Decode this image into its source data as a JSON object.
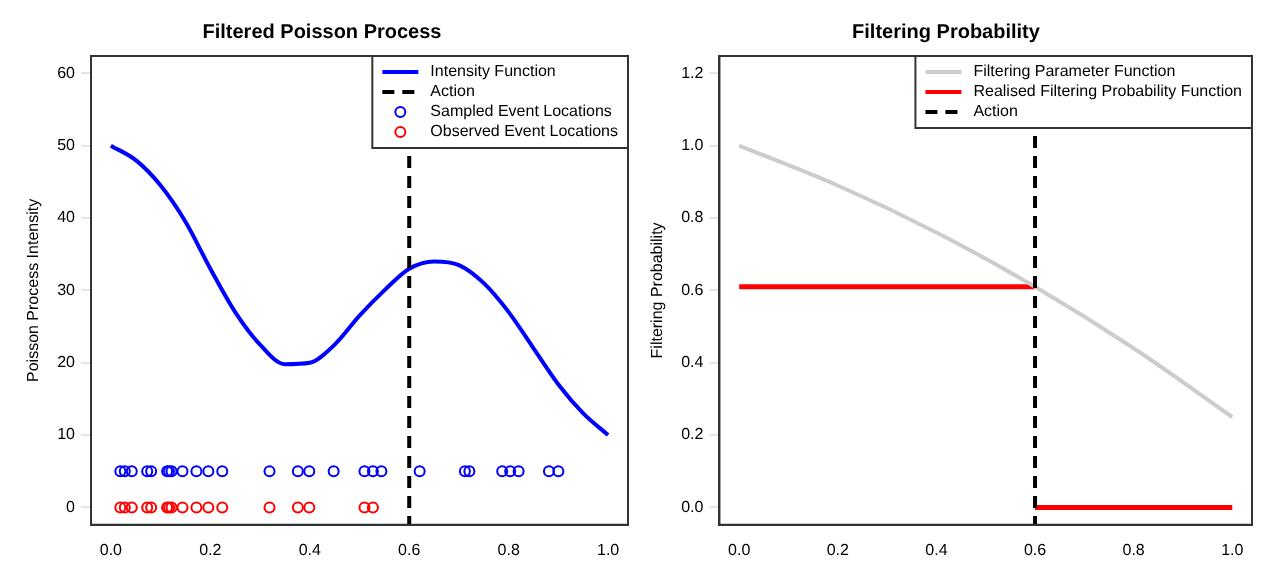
{
  "chart_data": [
    {
      "type": "line",
      "title": "Filtered Poisson Process",
      "ylabel": "Poisson Process Intensity",
      "xlim": [
        -0.04,
        1.04
      ],
      "xticks": [
        {
          "value": 0,
          "label": "0.0"
        },
        {
          "value": 0.2,
          "label": "0.2"
        },
        {
          "value": 0.4,
          "label": "0.4"
        },
        {
          "value": 0.6,
          "label": "0.6"
        },
        {
          "value": 0.8,
          "label": "0.8"
        },
        {
          "value": 1,
          "label": "1.0"
        }
      ],
      "ylim": [
        -2.4,
        62.4
      ],
      "yticks": [
        0,
        10,
        20,
        30,
        40,
        50,
        60
      ],
      "grid": false,
      "legend": "top right",
      "series": [
        {
          "name": "Intensity Function",
          "color": "#0000ff",
          "marker": "none",
          "line_style": "solid",
          "x": [
            0,
            0.05,
            0.1,
            0.15,
            0.2,
            0.25,
            0.3,
            0.35,
            0.4,
            0.45,
            0.5,
            0.55,
            0.6,
            0.65,
            0.7,
            0.75,
            0.8,
            0.85,
            0.9,
            0.95,
            1.0
          ],
          "values": [
            50,
            48,
            44.5,
            39.5,
            33,
            27,
            22.5,
            19.8,
            20,
            22.5,
            26.5,
            30,
            33,
            34,
            33.5,
            31,
            27,
            22,
            17,
            13,
            10
          ]
        },
        {
          "name": "Sampled Event Locations",
          "type": "scatter",
          "color": "#0000ff",
          "marker": "circle",
          "x": [
            0.019,
            0.028,
            0.042,
            0.073,
            0.081,
            0.113,
            0.117,
            0.122,
            0.144,
            0.172,
            0.196,
            0.224,
            0.319,
            0.376,
            0.399,
            0.448,
            0.51,
            0.527,
            0.544,
            0.621,
            0.712,
            0.721,
            0.787,
            0.803,
            0.82,
            0.881,
            0.9
          ],
          "values": [
            5,
            5,
            5,
            5,
            5,
            5,
            5,
            5,
            5,
            5,
            5,
            5,
            5,
            5,
            5,
            5,
            5,
            5,
            5,
            5,
            5,
            5,
            5,
            5,
            5,
            5,
            5
          ]
        },
        {
          "name": "Observed Event Locations",
          "type": "scatter",
          "color": "#ff0000",
          "marker": "circle",
          "x": [
            0.019,
            0.028,
            0.042,
            0.073,
            0.081,
            0.113,
            0.117,
            0.122,
            0.144,
            0.172,
            0.196,
            0.224,
            0.319,
            0.376,
            0.399,
            0.51,
            0.527
          ],
          "values": [
            0,
            0,
            0,
            0,
            0,
            0,
            0,
            0,
            0,
            0,
            0,
            0,
            0,
            0,
            0,
            0,
            0
          ]
        }
      ],
      "ref_lines": [
        {
          "axis": "x",
          "value": 0.6,
          "label": "Action",
          "color": "#000000",
          "line_style": "dashed"
        }
      ]
    },
    {
      "type": "line",
      "title": "Filtering Probability",
      "ylabel": "Filtering Probability",
      "xlim": [
        -0.04,
        1.04
      ],
      "xticks": [
        {
          "value": 0,
          "label": "0.0"
        },
        {
          "value": 0.2,
          "label": "0.2"
        },
        {
          "value": 0.4,
          "label": "0.4"
        },
        {
          "value": 0.6,
          "label": "0.6"
        },
        {
          "value": 0.8,
          "label": "0.8"
        },
        {
          "value": 1,
          "label": "1.0"
        }
      ],
      "ylim": [
        -0.048,
        1.248
      ],
      "yticks": [
        {
          "value": 0,
          "label": "0.0"
        },
        {
          "value": 0.2,
          "label": "0.2"
        },
        {
          "value": 0.4,
          "label": "0.4"
        },
        {
          "value": 0.6,
          "label": "0.6"
        },
        {
          "value": 0.8,
          "label": "0.8"
        },
        {
          "value": 1,
          "label": "1.0"
        },
        {
          "value": 1.2,
          "label": "1.2"
        }
      ],
      "grid": false,
      "legend": "top right",
      "series": [
        {
          "name": "Filtering Parameter Function",
          "color": "#cccccc",
          "marker": "none",
          "line_style": "solid",
          "x": [
            0,
            0.2,
            0.4,
            0.6,
            0.8,
            1.0
          ],
          "values": [
            1.0,
            0.89,
            0.76,
            0.61,
            0.44,
            0.25
          ]
        },
        {
          "name": "Realised Filtering Probability Function",
          "color": "#ff0000",
          "marker": "none",
          "line_style": "solid",
          "x": [
            0,
            0.6
          ],
          "values": [
            0.61,
            0.61
          ]
        },
        {
          "color": "#ff0000",
          "marker": "none",
          "line_style": "solid",
          "x": [
            0.6,
            1.0
          ],
          "values": [
            0,
            0
          ]
        }
      ],
      "ref_lines": [
        {
          "axis": "x",
          "value": 0.6,
          "label": "Action",
          "color": "#000000",
          "line_style": "dashed"
        }
      ]
    }
  ]
}
